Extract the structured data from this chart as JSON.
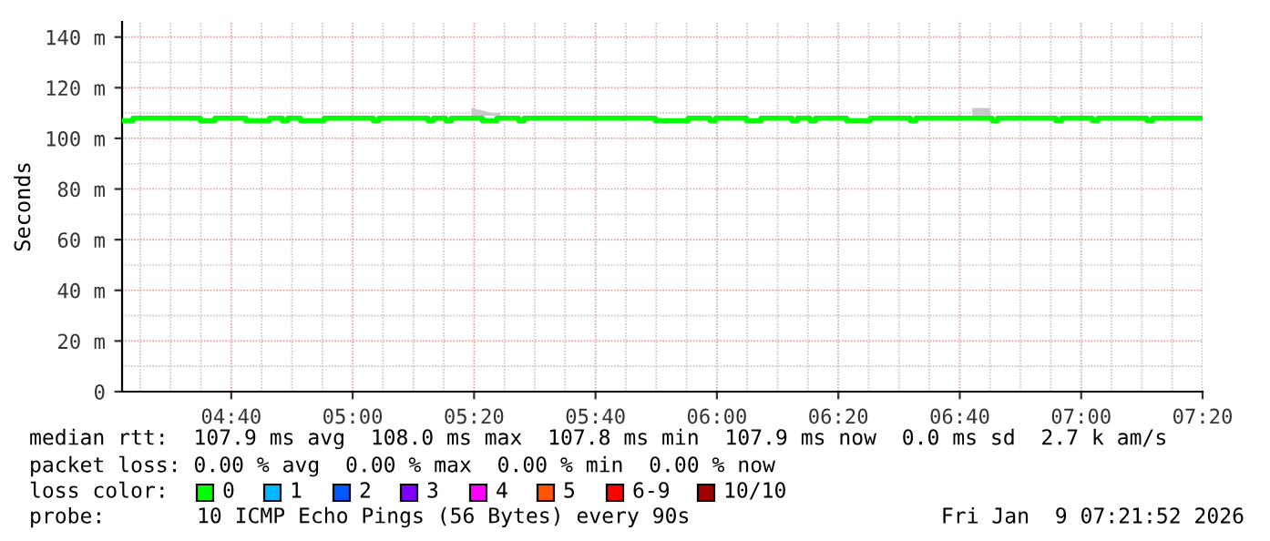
{
  "chart_data": {
    "type": "step",
    "ylabel": "Seconds",
    "xlim": [
      4.367,
      7.3333
    ],
    "ylim": [
      0,
      146
    ],
    "xticks": [
      {
        "value": 4.6667,
        "label": "04:40"
      },
      {
        "value": 5.0,
        "label": "05:00"
      },
      {
        "value": 5.3333,
        "label": "05:20"
      },
      {
        "value": 5.6667,
        "label": "05:40"
      },
      {
        "value": 6.0,
        "label": "06:00"
      },
      {
        "value": 6.3333,
        "label": "06:20"
      },
      {
        "value": 6.6667,
        "label": "06:40"
      },
      {
        "value": 7.0,
        "label": "07:00"
      },
      {
        "value": 7.3333,
        "label": "07:20"
      }
    ],
    "yticks": [
      0,
      {
        "value": 20,
        "label": "20 m"
      },
      {
        "value": 40,
        "label": "40 m"
      },
      {
        "value": 60,
        "label": "60 m"
      },
      {
        "value": 80,
        "label": "80 m"
      },
      {
        "value": 100,
        "label": "100 m"
      },
      {
        "value": 120,
        "label": "120 m"
      },
      {
        "value": 140,
        "label": "140 m"
      }
    ],
    "grid": true,
    "x": [
      4.367,
      4.397,
      4.582,
      4.622,
      4.707,
      4.772,
      4.807,
      4.822,
      4.857,
      4.922,
      5.057,
      5.072,
      5.207,
      5.222,
      5.256,
      5.271,
      5.326,
      5.356,
      5.381,
      5.396,
      5.406,
      5.456,
      5.471,
      5.831,
      5.921,
      5.981,
      5.996,
      6.081,
      6.121,
      6.206,
      6.221,
      6.256,
      6.271,
      6.356,
      6.421,
      6.531,
      6.546,
      6.701,
      6.751,
      6.756,
      6.771,
      6.931,
      6.946,
      7.031,
      7.046,
      7.181,
      7.196,
      7.33
    ],
    "series": [
      {
        "color": "#00ff00",
        "values": [
          107,
          108,
          107,
          108,
          107,
          108,
          107,
          108,
          107,
          108,
          107,
          108,
          107,
          108,
          107,
          108,
          108,
          107,
          107,
          108,
          108,
          107,
          108,
          107,
          108,
          107,
          108,
          107,
          108,
          107,
          108,
          107,
          108,
          107,
          108,
          107,
          108,
          108,
          108,
          107,
          108,
          107,
          108,
          107,
          108,
          107,
          108,
          108
        ],
        "lower": [
          null,
          null,
          null,
          null,
          null,
          null,
          null,
          null,
          null,
          null,
          null,
          null,
          null,
          null,
          null,
          null,
          109,
          109,
          109,
          109,
          109,
          null,
          null,
          null,
          null,
          null,
          null,
          null,
          null,
          null,
          null,
          null,
          null,
          null,
          null,
          null,
          null,
          109,
          109,
          null,
          null,
          null,
          null,
          null,
          null,
          null,
          null,
          null
        ],
        "upper": [
          null,
          null,
          null,
          null,
          null,
          null,
          null,
          null,
          null,
          null,
          null,
          null,
          null,
          null,
          null,
          null,
          112,
          111,
          110,
          110,
          110,
          null,
          null,
          null,
          null,
          null,
          null,
          null,
          null,
          null,
          null,
          null,
          null,
          null,
          null,
          null,
          null,
          112,
          112,
          null,
          null,
          null,
          null,
          null,
          null,
          null,
          null,
          null
        ]
      }
    ],
    "annotations": [
      "median rtt:  107.9 ms avg  108.0 ms max  107.8 ms min  107.9 ms now  0.0 ms sd  2.7 k am/s",
      "packet loss: 0.00 % avg  0.00 % max  0.00 % min  0.00 % now",
      "loss color:",
      "0",
      "1",
      "2",
      "3",
      "4",
      "5",
      "6-9",
      "10/10",
      "probe:",
      "10 ICMP Echo Pings (56 Bytes) every 90s",
      "Fri Jan  9 07:21:52 2026"
    ]
  }
}
